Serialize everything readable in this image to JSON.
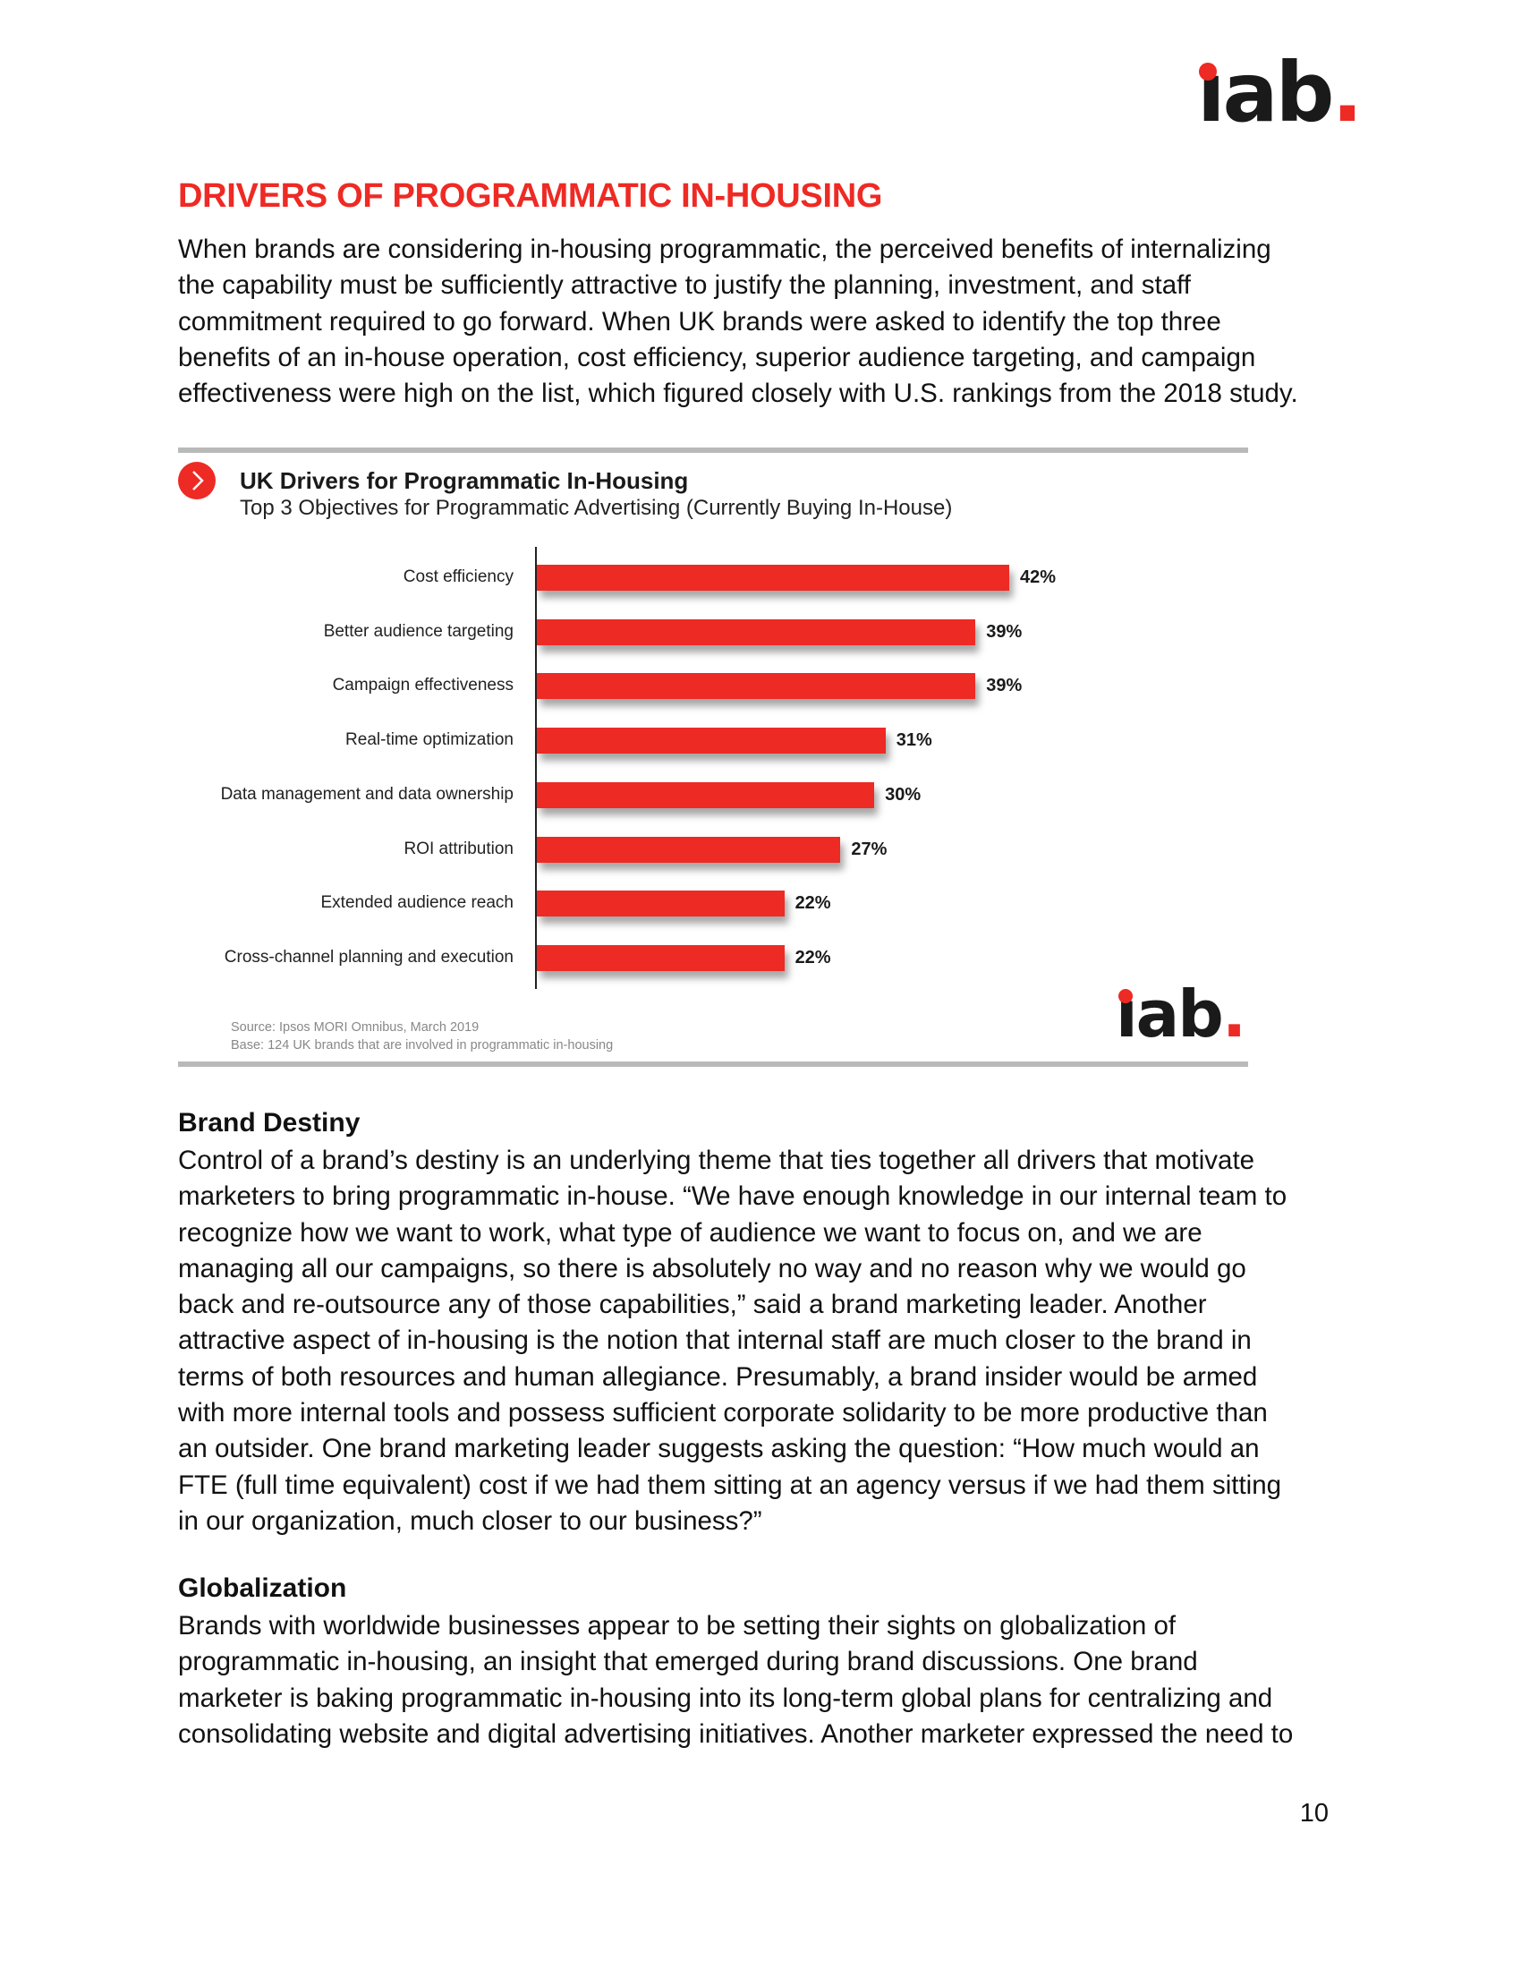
{
  "logo_text": "iab.",
  "title": "DRIVERS OF PROGRAMMATIC IN-HOUSING",
  "intro_lines": [
    "When brands are considering in-housing programmatic, the perceived benefits of internalizing",
    "the capability must be sufficiently attractive to justify the planning, investment, and staff",
    "commitment required to go forward. When UK brands were asked to identify the top three",
    "benefits of an in-house operation, cost efficiency, superior audience targeting, and campaign",
    "effectiveness were high on the list, which figured closely with U.S. rankings from the 2018 study."
  ],
  "chart_data": {
    "type": "bar",
    "orientation": "horizontal",
    "title": "UK Drivers for Programmatic In-Housing",
    "subtitle": "Top 3 Objectives for Programmatic Advertising (Currently Buying In-House)",
    "categories": [
      "Cost efficiency",
      "Better audience targeting",
      "Campaign effectiveness",
      "Real-time optimization",
      "Data management and data ownership",
      "ROI attribution",
      "Extended audience reach",
      "Cross-channel planning and execution"
    ],
    "values": [
      42,
      39,
      39,
      31,
      30,
      27,
      22,
      22
    ],
    "value_labels": [
      "42%",
      "39%",
      "39%",
      "31%",
      "30%",
      "27%",
      "22%",
      "22%"
    ],
    "unit": "%",
    "xlim": [
      0,
      42
    ],
    "grid": false,
    "bar_color": "#ee2a24",
    "source": "Source: Ipsos MORI Omnibus, March 2019",
    "base": "Base: 124 UK brands that are involved in programmatic in-housing"
  },
  "brand_heading": "Brand Destiny",
  "brand_lines": [
    "Control of a brand’s destiny is an underlying theme that ties together all drivers that motivate",
    "marketers to bring programmatic in-house. “We have enough knowledge in our internal team to",
    "recognize how we want to work, what type of audience we want to focus on, and we are",
    "managing all our campaigns, so there is absolutely no way and no reason why we would go",
    "back and re-outsource any of those capabilities,” said a brand marketing leader. Another",
    "attractive aspect of in-housing is the notion that internal staff are much closer to the brand in",
    "terms of both resources and human allegiance. Presumably, a brand insider would be armed",
    "with more internal tools and possess sufficient corporate solidarity to be more productive than",
    "an outsider. One brand marketing leader suggests asking the question: “How much would an",
    "FTE (full time equivalent) cost if we had them sitting at an agency versus if we had them sitting",
    "in our organization, much closer to our business?”"
  ],
  "glob_heading": "Globalization",
  "glob_lines": [
    "Brands with worldwide businesses appear to be setting their sights on globalization of",
    "programmatic in-housing, an insight that emerged during brand discussions. One brand",
    "marketer is baking programmatic in-housing into its long-term global plans for centralizing and",
    "consolidating website and digital advertising initiatives. Another marketer expressed the need to"
  ],
  "page_number": "10",
  "colors": {
    "accent": "#ee2a24",
    "rule": "#b9b9b9"
  }
}
